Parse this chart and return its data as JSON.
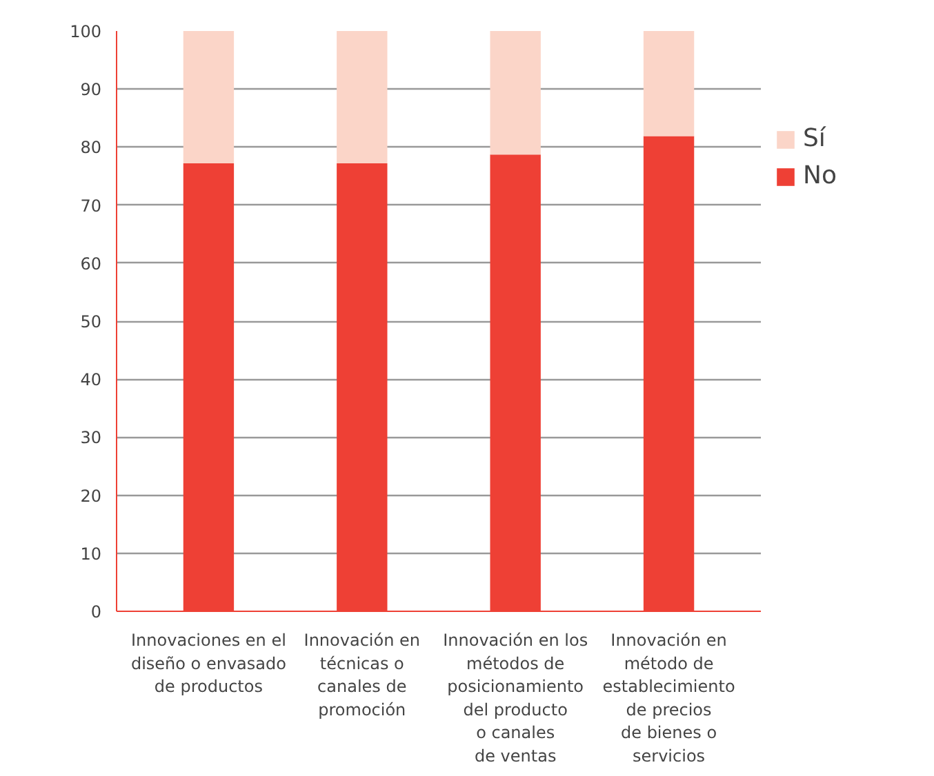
{
  "chart_data": {
    "type": "bar",
    "stacked": true,
    "categories": [
      "Innovaciones en el\ndiseño o envasado\nde productos",
      "Innovación en\ntécnicas o\ncanales de\npromoción",
      "Innovación en los\nmétodos de\nposicionamiento\ndel producto\no canales\nde ventas",
      "Innovación en\nmétodo de\nestablecimiento\nde precios\nde bienes o\nservicios"
    ],
    "series": [
      {
        "name": "No",
        "color": "#ee4035",
        "values": [
          77.2,
          77.2,
          78.7,
          81.9
        ]
      },
      {
        "name": "Sí",
        "color": "#fbd5c8",
        "values": [
          22.8,
          22.8,
          21.3,
          18.1
        ]
      }
    ],
    "ylim": [
      0,
      100
    ],
    "yticks": [
      0,
      10,
      20,
      30,
      40,
      50,
      60,
      70,
      80,
      90,
      100
    ],
    "grid": "y",
    "legend": "right"
  }
}
